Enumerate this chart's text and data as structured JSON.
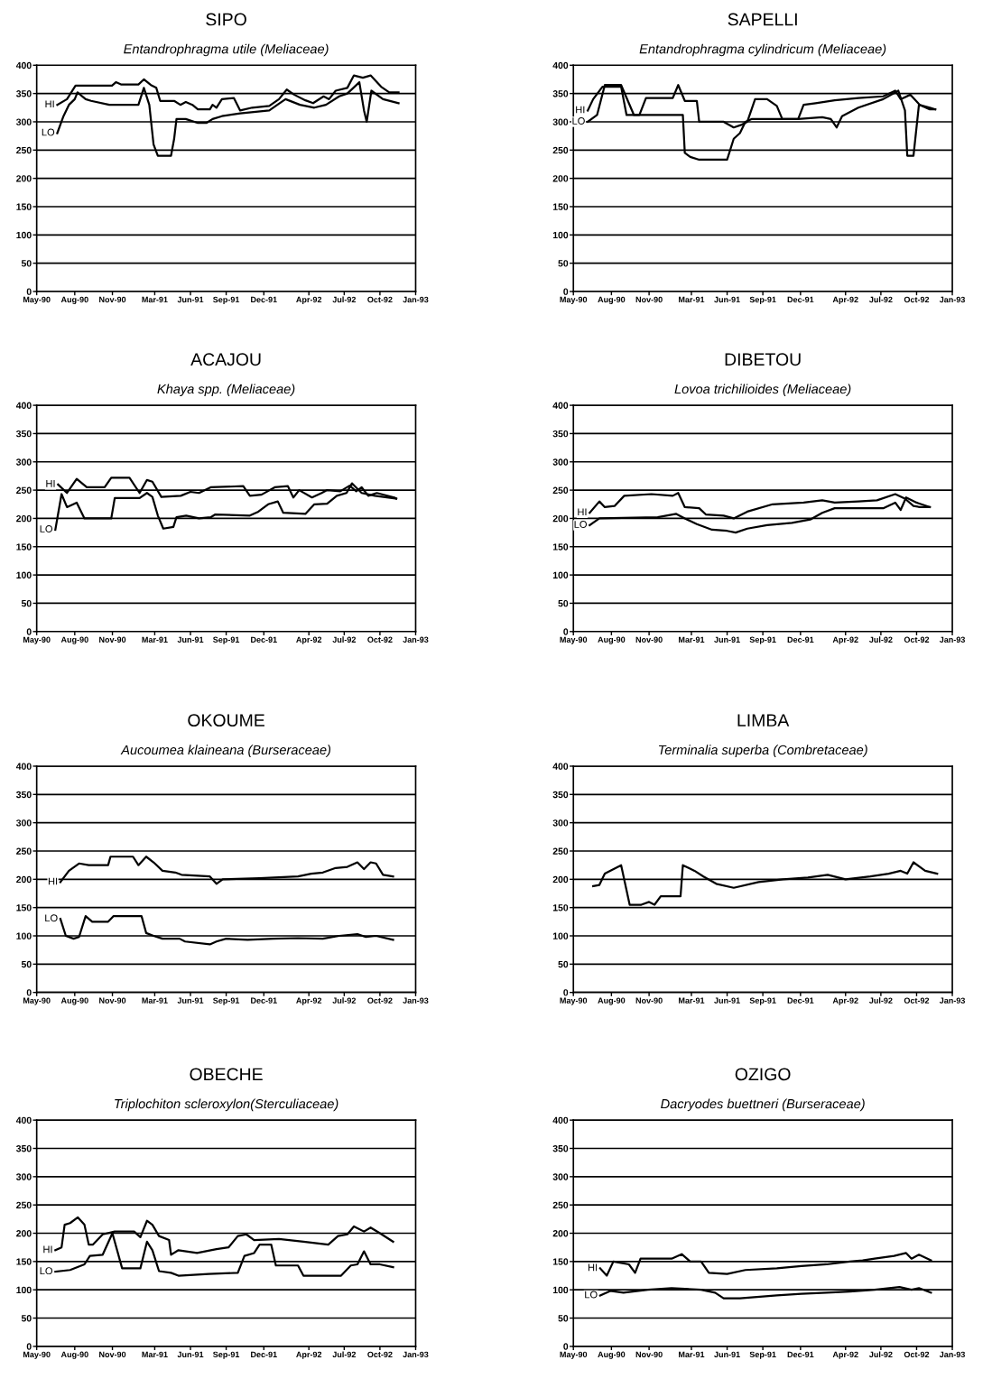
{
  "chart_data": [
    {
      "type": "line",
      "title": "SIPO",
      "subtitle": "Entandrophragma utile (Meliaceae)",
      "grid": "y",
      "xlim": [
        "1990-05-01",
        "1993-01-01"
      ],
      "ylim": [
        0,
        400
      ],
      "yticks": [
        0,
        50,
        100,
        150,
        200,
        250,
        300,
        350,
        400
      ],
      "xticks": [
        {
          "value": "1990-05-01",
          "label": "May-90"
        },
        {
          "value": "1990-08-07",
          "label": "Aug-90"
        },
        {
          "value": "1990-11-12",
          "label": "Nov-90"
        },
        {
          "value": "1991-03-01",
          "label": "Mar-91"
        },
        {
          "value": "1991-06-01",
          "label": "Jun-91"
        },
        {
          "value": "1991-09-01",
          "label": "Sep-91"
        },
        {
          "value": "1991-12-07",
          "label": "Dec-91"
        },
        {
          "value": "1992-04-01",
          "label": "Apr-92"
        },
        {
          "value": "1992-07-01",
          "label": "Jul-92"
        },
        {
          "value": "1992-10-01",
          "label": "Oct-92"
        },
        {
          "value": "1993-01-01",
          "label": "Jan-93"
        }
      ],
      "series": [
        {
          "name": "HI",
          "color": "#000000",
          "x": [
            "1990-06-23",
            "1990-07-18",
            "1990-08-09",
            "1990-11-11",
            "1990-11-21",
            "1990-12-04",
            "1991-01-18",
            "1991-02-01",
            "1991-02-19",
            "1991-03-05",
            "1991-03-15",
            "1991-04-20",
            "1991-05-06",
            "1991-05-20",
            "1991-06-06",
            "1991-06-20",
            "1991-07-21",
            "1991-07-28",
            "1991-08-07",
            "1991-08-21",
            "1991-09-21",
            "1991-10-07",
            "1991-11-07",
            "1991-12-21",
            "1992-01-15",
            "1992-02-04",
            "1992-02-23",
            "1992-03-23",
            "1992-04-12",
            "1992-05-09",
            "1992-05-23",
            "1992-06-09",
            "1992-07-09",
            "1992-07-26",
            "1992-08-18",
            "1992-09-07",
            "1992-10-04",
            "1992-10-25",
            "1992-11-18"
          ],
          "values": [
            330,
            340,
            364,
            364,
            370,
            366,
            366,
            375,
            365,
            360,
            337,
            337,
            330,
            335,
            330,
            322,
            322,
            330,
            325,
            340,
            342,
            320,
            325,
            328,
            340,
            357,
            348,
            338,
            333,
            345,
            340,
            355,
            360,
            382,
            378,
            382,
            362,
            352,
            352
          ]
        },
        {
          "name": "LO",
          "color": "#000000",
          "x": [
            "1990-06-23",
            "1990-07-09",
            "1990-07-23",
            "1990-08-07",
            "1990-08-14",
            "1990-09-04",
            "1990-09-18",
            "1990-11-04",
            "1991-01-18",
            "1991-02-01",
            "1991-02-15",
            "1991-02-26",
            "1991-03-09",
            "1991-04-12",
            "1991-04-20",
            "1991-04-26",
            "1991-05-20",
            "1991-06-20",
            "1991-07-12",
            "1991-07-28",
            "1991-08-21",
            "1991-10-07",
            "1991-12-21",
            "1992-01-15",
            "1992-02-01",
            "1992-03-09",
            "1992-04-15",
            "1992-05-15",
            "1992-06-18",
            "1992-07-09",
            "1992-08-09",
            "1992-08-21",
            "1992-08-28",
            "1992-09-09",
            "1992-10-09",
            "1992-11-18"
          ],
          "values": [
            280,
            310,
            330,
            340,
            352,
            340,
            337,
            330,
            330,
            360,
            330,
            260,
            240,
            240,
            270,
            305,
            305,
            298,
            298,
            305,
            310,
            315,
            320,
            332,
            340,
            330,
            325,
            330,
            345,
            350,
            370,
            320,
            300,
            355,
            340,
            333
          ]
        }
      ]
    },
    {
      "type": "line",
      "title": "SAPELLI",
      "subtitle": "Entandrophragma cylindricum (Meliaceae)",
      "grid": "y",
      "xlim": [
        "1990-05-01",
        "1993-01-01"
      ],
      "ylim": [
        0,
        400
      ],
      "yticks": [
        0,
        50,
        100,
        150,
        200,
        250,
        300,
        350,
        400
      ],
      "xticks": [
        {
          "value": "1990-05-01",
          "label": "May-90"
        },
        {
          "value": "1990-08-07",
          "label": "Aug-90"
        },
        {
          "value": "1990-11-12",
          "label": "Nov-90"
        },
        {
          "value": "1991-03-01",
          "label": "Mar-91"
        },
        {
          "value": "1991-06-01",
          "label": "Jun-91"
        },
        {
          "value": "1991-09-01",
          "label": "Sep-91"
        },
        {
          "value": "1991-12-07",
          "label": "Dec-91"
        },
        {
          "value": "1992-04-01",
          "label": "Apr-92"
        },
        {
          "value": "1992-07-01",
          "label": "Jul-92"
        },
        {
          "value": "1992-10-01",
          "label": "Oct-92"
        },
        {
          "value": "1993-01-01",
          "label": "Jan-93"
        }
      ],
      "series": [
        {
          "name": "HI",
          "color": "#000000",
          "x": [
            "1990-06-07",
            "1990-06-21",
            "1990-07-15",
            "1990-09-01",
            "1990-09-15",
            "1990-10-18",
            "1990-11-04",
            "1991-01-12",
            "1991-01-26",
            "1991-02-12",
            "1991-03-15",
            "1991-03-21",
            "1991-05-23",
            "1991-06-18",
            "1991-07-09",
            "1991-07-23",
            "1991-08-12",
            "1991-09-12",
            "1991-10-07",
            "1991-10-21",
            "1991-12-01",
            "1991-12-15",
            "1992-01-15",
            "1992-03-04",
            "1992-05-04",
            "1992-07-07",
            "1992-08-07",
            "1992-08-21",
            "1992-09-15",
            "1992-10-09",
            "1992-11-04",
            "1992-11-18"
          ],
          "values": [
            320,
            340,
            362,
            362,
            312,
            312,
            342,
            342,
            365,
            337,
            337,
            300,
            300,
            290,
            295,
            300,
            340,
            340,
            328,
            305,
            305,
            330,
            333,
            338,
            342,
            345,
            355,
            340,
            348,
            330,
            322,
            322
          ]
        },
        {
          "name": "LO",
          "color": "#000000",
          "x": [
            "1990-06-07",
            "1990-07-01",
            "1990-07-21",
            "1990-09-01",
            "1990-10-04",
            "1991-02-07",
            "1991-02-12",
            "1991-02-26",
            "1991-03-21",
            "1991-06-01",
            "1991-06-18",
            "1991-07-04",
            "1991-07-18",
            "1991-08-04",
            "1991-12-01",
            "1992-02-01",
            "1992-02-23",
            "1992-03-09",
            "1992-03-23",
            "1992-05-04",
            "1992-07-07",
            "1992-08-15",
            "1992-09-01",
            "1992-09-07",
            "1992-09-23",
            "1992-10-07",
            "1992-11-04",
            "1992-11-18"
          ],
          "values": [
            300,
            312,
            365,
            365,
            312,
            312,
            245,
            238,
            233,
            233,
            270,
            280,
            300,
            305,
            305,
            308,
            305,
            290,
            310,
            325,
            340,
            355,
            320,
            240,
            240,
            330,
            325,
            322
          ]
        }
      ]
    },
    {
      "type": "line",
      "title": "ACAJOU",
      "subtitle": "Khaya spp. (Meliaceae)",
      "grid": "y",
      "xlim": [
        "1990-05-01",
        "1993-01-01"
      ],
      "ylim": [
        0,
        400
      ],
      "yticks": [
        0,
        50,
        100,
        150,
        200,
        250,
        300,
        350,
        400
      ],
      "xticks": [
        {
          "value": "1990-05-01",
          "label": "May-90"
        },
        {
          "value": "1990-08-07",
          "label": "Aug-90"
        },
        {
          "value": "1990-11-12",
          "label": "Nov-90"
        },
        {
          "value": "1991-03-01",
          "label": "Mar-91"
        },
        {
          "value": "1991-06-01",
          "label": "Jun-91"
        },
        {
          "value": "1991-09-01",
          "label": "Sep-91"
        },
        {
          "value": "1991-12-07",
          "label": "Dec-91"
        },
        {
          "value": "1992-04-01",
          "label": "Apr-92"
        },
        {
          "value": "1992-07-01",
          "label": "Jul-92"
        },
        {
          "value": "1992-10-01",
          "label": "Oct-92"
        },
        {
          "value": "1993-01-01",
          "label": "Jan-93"
        }
      ],
      "series": [
        {
          "name": "HI",
          "color": "#000000",
          "x": [
            "1990-06-25",
            "1990-07-18",
            "1990-08-12",
            "1990-09-07",
            "1990-10-23",
            "1990-11-09",
            "1990-12-26",
            "1991-01-21",
            "1991-02-09",
            "1991-02-23",
            "1991-03-18",
            "1991-05-07",
            "1991-06-01",
            "1991-06-23",
            "1991-07-23",
            "1991-10-15",
            "1991-11-01",
            "1991-12-01",
            "1992-01-04",
            "1992-02-07",
            "1992-02-21",
            "1992-03-07",
            "1992-04-09",
            "1992-05-04",
            "1992-05-18",
            "1992-06-21",
            "1992-07-15",
            "1992-08-01",
            "1992-08-15",
            "1992-09-01",
            "1992-09-23",
            "1992-11-07",
            "1992-11-12"
          ],
          "values": [
            260,
            245,
            270,
            255,
            255,
            272,
            272,
            245,
            268,
            265,
            238,
            240,
            247,
            245,
            255,
            257,
            240,
            242,
            255,
            257,
            237,
            250,
            237,
            245,
            250,
            248,
            258,
            248,
            255,
            240,
            245,
            237,
            235
          ]
        },
        {
          "name": "LO",
          "color": "#000000",
          "x": [
            "1990-06-18",
            "1990-07-04",
            "1990-07-18",
            "1990-08-12",
            "1990-09-01",
            "1990-11-09",
            "1990-11-18",
            "1991-01-21",
            "1991-02-09",
            "1991-02-23",
            "1991-03-09",
            "1991-03-23",
            "1991-04-18",
            "1991-04-26",
            "1991-05-21",
            "1991-06-23",
            "1991-07-23",
            "1991-08-04",
            "1991-11-01",
            "1991-11-23",
            "1991-12-18",
            "1992-01-12",
            "1992-01-26",
            "1992-03-23",
            "1992-04-15",
            "1992-05-18",
            "1992-06-12",
            "1992-07-07",
            "1992-07-21",
            "1992-08-15",
            "1992-09-18",
            "1992-11-12"
          ],
          "values": [
            180,
            243,
            220,
            228,
            200,
            200,
            236,
            236,
            245,
            238,
            205,
            182,
            185,
            202,
            205,
            200,
            202,
            207,
            205,
            212,
            225,
            230,
            210,
            208,
            225,
            226,
            240,
            245,
            262,
            245,
            240,
            235
          ]
        }
      ]
    },
    {
      "type": "line",
      "title": "DIBETOU",
      "subtitle": "Lovoa trichilioides (Meliaceae)",
      "grid": "y",
      "xlim": [
        "1990-05-01",
        "1993-01-01"
      ],
      "ylim": [
        0,
        400
      ],
      "yticks": [
        0,
        50,
        100,
        150,
        200,
        250,
        300,
        350,
        400
      ],
      "xticks": [
        {
          "value": "1990-05-01",
          "label": "May-90"
        },
        {
          "value": "1990-08-07",
          "label": "Aug-90"
        },
        {
          "value": "1990-11-12",
          "label": "Nov-90"
        },
        {
          "value": "1991-03-01",
          "label": "Mar-91"
        },
        {
          "value": "1991-06-01",
          "label": "Jun-91"
        },
        {
          "value": "1991-09-01",
          "label": "Sep-91"
        },
        {
          "value": "1991-12-07",
          "label": "Dec-91"
        },
        {
          "value": "1992-04-01",
          "label": "Apr-92"
        },
        {
          "value": "1992-07-01",
          "label": "Jul-92"
        },
        {
          "value": "1992-10-01",
          "label": "Oct-92"
        },
        {
          "value": "1993-01-01",
          "label": "Jan-93"
        }
      ],
      "series": [
        {
          "name": "HI",
          "color": "#000000",
          "x": [
            "1990-06-12",
            "1990-07-07",
            "1990-07-21",
            "1990-08-15",
            "1990-09-09",
            "1990-11-18",
            "1991-01-12",
            "1991-01-26",
            "1991-02-12",
            "1991-03-21",
            "1991-04-07",
            "1991-05-23",
            "1991-06-18",
            "1991-07-23",
            "1991-09-26",
            "1991-12-15",
            "1992-02-01",
            "1992-03-04",
            "1992-05-04",
            "1992-06-21",
            "1992-08-07",
            "1992-09-01",
            "1992-09-23",
            "1992-10-09",
            "1992-11-04"
          ],
          "values": [
            210,
            230,
            220,
            222,
            240,
            243,
            240,
            245,
            220,
            218,
            207,
            205,
            200,
            212,
            225,
            228,
            232,
            228,
            230,
            232,
            243,
            235,
            222,
            220,
            220
          ]
        },
        {
          "name": "LO",
          "color": "#000000",
          "x": [
            "1990-06-12",
            "1990-07-07",
            "1990-12-04",
            "1991-01-21",
            "1991-02-12",
            "1991-03-15",
            "1991-04-23",
            "1991-06-01",
            "1991-06-23",
            "1991-07-23",
            "1991-09-12",
            "1991-11-15",
            "1992-01-01",
            "1992-02-01",
            "1992-03-04",
            "1992-05-04",
            "1992-07-07",
            "1992-08-07",
            "1992-08-21",
            "1992-09-04",
            "1992-10-01",
            "1992-11-04"
          ],
          "values": [
            188,
            200,
            202,
            208,
            200,
            190,
            180,
            178,
            175,
            182,
            188,
            192,
            198,
            210,
            218,
            218,
            218,
            228,
            215,
            237,
            228,
            220
          ]
        }
      ]
    },
    {
      "type": "line",
      "title": "OKOUME",
      "subtitle": "Aucoumea klaineana (Burseraceae)",
      "grid": "y",
      "xlim": [
        "1990-05-01",
        "1993-01-01"
      ],
      "ylim": [
        0,
        400
      ],
      "yticks": [
        0,
        50,
        100,
        150,
        200,
        250,
        300,
        350,
        400
      ],
      "xticks": [
        {
          "value": "1990-05-01",
          "label": "May-90"
        },
        {
          "value": "1990-08-07",
          "label": "Aug-90"
        },
        {
          "value": "1990-11-12",
          "label": "Nov-90"
        },
        {
          "value": "1991-03-01",
          "label": "Mar-91"
        },
        {
          "value": "1991-06-01",
          "label": "Jun-91"
        },
        {
          "value": "1991-09-01",
          "label": "Sep-91"
        },
        {
          "value": "1991-12-07",
          "label": "Dec-91"
        },
        {
          "value": "1992-04-01",
          "label": "Apr-92"
        },
        {
          "value": "1992-07-01",
          "label": "Jul-92"
        },
        {
          "value": "1992-10-01",
          "label": "Oct-92"
        },
        {
          "value": "1993-01-01",
          "label": "Jan-93"
        }
      ],
      "series": [
        {
          "name": "HI",
          "color": "#000000",
          "x": [
            "1990-07-01",
            "1990-07-23",
            "1990-08-18",
            "1990-09-12",
            "1990-11-01",
            "1990-11-07",
            "1991-01-04",
            "1991-01-18",
            "1991-02-07",
            "1991-02-26",
            "1991-03-21",
            "1991-04-23",
            "1991-05-09",
            "1991-07-21",
            "1991-08-07",
            "1991-08-23",
            "1991-11-26",
            "1992-03-04",
            "1992-04-07",
            "1992-05-07",
            "1992-06-09",
            "1992-07-09",
            "1992-08-04",
            "1992-08-21",
            "1992-09-07",
            "1992-09-21",
            "1992-10-09",
            "1992-11-04"
          ],
          "values": [
            195,
            215,
            228,
            225,
            225,
            240,
            240,
            225,
            240,
            230,
            215,
            212,
            208,
            205,
            192,
            200,
            202,
            205,
            210,
            212,
            220,
            222,
            230,
            218,
            230,
            228,
            208,
            205
          ]
        },
        {
          "name": "LO",
          "color": "#000000",
          "x": [
            "1990-07-01",
            "1990-07-15",
            "1990-08-04",
            "1990-08-18",
            "1990-09-04",
            "1990-09-21",
            "1990-11-01",
            "1990-11-15",
            "1991-01-26",
            "1991-02-07",
            "1991-02-26",
            "1991-03-21",
            "1991-05-04",
            "1991-05-18",
            "1991-07-21",
            "1991-08-07",
            "1991-09-01",
            "1991-10-26",
            "1992-01-01",
            "1992-03-04",
            "1992-05-07",
            "1992-06-18",
            "1992-08-04",
            "1992-08-26",
            "1992-09-21",
            "1992-11-04"
          ],
          "values": [
            130,
            100,
            95,
            98,
            135,
            125,
            125,
            135,
            135,
            105,
            100,
            95,
            95,
            90,
            85,
            90,
            95,
            93,
            95,
            96,
            95,
            100,
            103,
            98,
            100,
            93
          ]
        }
      ]
    },
    {
      "type": "line",
      "title": "LIMBA",
      "subtitle": "Terminalia superba (Combretaceae)",
      "grid": "y",
      "xlim": [
        "1990-05-01",
        "1993-01-01"
      ],
      "ylim": [
        0,
        400
      ],
      "yticks": [
        0,
        50,
        100,
        150,
        200,
        250,
        300,
        350,
        400
      ],
      "xticks": [
        {
          "value": "1990-05-01",
          "label": "May-90"
        },
        {
          "value": "1990-08-07",
          "label": "Aug-90"
        },
        {
          "value": "1990-11-12",
          "label": "Nov-90"
        },
        {
          "value": "1991-03-01",
          "label": "Mar-91"
        },
        {
          "value": "1991-06-01",
          "label": "Jun-91"
        },
        {
          "value": "1991-09-01",
          "label": "Sep-91"
        },
        {
          "value": "1991-12-07",
          "label": "Dec-91"
        },
        {
          "value": "1992-04-01",
          "label": "Apr-92"
        },
        {
          "value": "1992-07-01",
          "label": "Jul-92"
        },
        {
          "value": "1992-10-01",
          "label": "Oct-92"
        },
        {
          "value": "1993-01-01",
          "label": "Jan-93"
        }
      ],
      "series": [
        {
          "color": "#000000",
          "x": [
            "1990-06-21",
            "1990-07-07",
            "1990-07-21",
            "1990-09-01",
            "1990-09-23",
            "1990-10-23",
            "1990-11-12",
            "1990-11-26",
            "1990-12-12",
            "1991-02-01",
            "1991-02-07",
            "1991-03-09",
            "1991-04-01",
            "1991-05-04",
            "1991-06-18",
            "1991-08-21",
            "1991-10-23",
            "1991-12-26",
            "1992-02-15",
            "1992-04-01",
            "1992-06-04",
            "1992-07-21",
            "1992-08-21",
            "1992-09-07",
            "1992-09-23",
            "1992-10-23",
            "1992-11-23"
          ],
          "values": [
            188,
            190,
            210,
            225,
            155,
            155,
            160,
            155,
            170,
            170,
            225,
            215,
            205,
            192,
            185,
            195,
            200,
            203,
            208,
            200,
            205,
            210,
            215,
            210,
            230,
            215,
            210
          ]
        }
      ]
    },
    {
      "type": "line",
      "title": "OBECHE",
      "subtitle": "Triplochiton scleroxylon(Sterculiaceae)",
      "grid": "y",
      "xlim": [
        "1990-05-01",
        "1993-01-01"
      ],
      "ylim": [
        0,
        400
      ],
      "yticks": [
        0,
        50,
        100,
        150,
        200,
        250,
        300,
        350,
        400
      ],
      "xticks": [
        {
          "value": "1990-05-01",
          "label": "May-90"
        },
        {
          "value": "1990-08-07",
          "label": "Aug-90"
        },
        {
          "value": "1990-11-12",
          "label": "Nov-90"
        },
        {
          "value": "1991-03-01",
          "label": "Mar-91"
        },
        {
          "value": "1991-06-01",
          "label": "Jun-91"
        },
        {
          "value": "1991-09-01",
          "label": "Sep-91"
        },
        {
          "value": "1991-12-07",
          "label": "Dec-91"
        },
        {
          "value": "1992-04-01",
          "label": "Apr-92"
        },
        {
          "value": "1992-07-01",
          "label": "Jul-92"
        },
        {
          "value": "1992-10-01",
          "label": "Oct-92"
        },
        {
          "value": "1993-01-01",
          "label": "Jan-93"
        }
      ],
      "series": [
        {
          "name": "HI",
          "color": "#000000",
          "x": [
            "1990-06-18",
            "1990-07-04",
            "1990-07-12",
            "1990-07-26",
            "1990-08-15",
            "1990-09-01",
            "1990-09-12",
            "1990-09-23",
            "1990-10-18",
            "1990-11-18",
            "1991-01-07",
            "1991-01-23",
            "1991-02-09",
            "1991-02-23",
            "1991-03-12",
            "1991-04-07",
            "1991-04-12",
            "1991-05-01",
            "1991-06-18",
            "1991-08-07",
            "1991-09-07",
            "1991-10-01",
            "1991-10-23",
            "1991-11-12",
            "1992-01-15",
            "1992-03-18",
            "1992-05-21",
            "1992-06-15",
            "1992-07-09",
            "1992-07-26",
            "1992-08-21",
            "1992-09-07",
            "1992-10-01",
            "1992-11-04"
          ],
          "values": [
            170,
            175,
            215,
            218,
            228,
            215,
            180,
            180,
            198,
            203,
            203,
            193,
            222,
            215,
            195,
            188,
            162,
            170,
            165,
            172,
            175,
            195,
            198,
            188,
            190,
            185,
            180,
            195,
            198,
            212,
            203,
            210,
            200,
            185
          ]
        },
        {
          "name": "LO",
          "color": "#000000",
          "x": [
            "1990-06-18",
            "1990-07-26",
            "1990-09-01",
            "1990-09-15",
            "1990-10-18",
            "1990-11-12",
            "1990-12-07",
            "1991-01-23",
            "1991-02-09",
            "1991-02-23",
            "1991-03-12",
            "1991-04-12",
            "1991-05-01",
            "1991-07-18",
            "1991-10-01",
            "1991-10-18",
            "1991-11-12",
            "1991-11-26",
            "1991-12-26",
            "1992-01-07",
            "1992-03-04",
            "1992-03-18",
            "1992-06-23",
            "1992-07-18",
            "1992-08-04",
            "1992-08-21",
            "1992-09-07",
            "1992-10-01",
            "1992-11-04"
          ],
          "values": [
            132,
            135,
            145,
            160,
            162,
            200,
            138,
            138,
            185,
            170,
            133,
            130,
            125,
            128,
            130,
            160,
            165,
            180,
            180,
            143,
            143,
            125,
            125,
            143,
            145,
            168,
            145,
            145,
            140
          ]
        }
      ]
    },
    {
      "type": "line",
      "title": "OZIGO",
      "subtitle": "Dacryodes buettneri (Burseraceae)",
      "grid": "y",
      "xlim": [
        "1990-05-01",
        "1993-01-01"
      ],
      "ylim": [
        0,
        400
      ],
      "yticks": [
        0,
        50,
        100,
        150,
        200,
        250,
        300,
        350,
        400
      ],
      "xticks": [
        {
          "value": "1990-05-01",
          "label": "May-90"
        },
        {
          "value": "1990-08-07",
          "label": "Aug-90"
        },
        {
          "value": "1990-11-12",
          "label": "Nov-90"
        },
        {
          "value": "1991-03-01",
          "label": "Mar-91"
        },
        {
          "value": "1991-06-01",
          "label": "Jun-91"
        },
        {
          "value": "1991-09-01",
          "label": "Sep-91"
        },
        {
          "value": "1991-12-07",
          "label": "Dec-91"
        },
        {
          "value": "1992-04-01",
          "label": "Apr-92"
        },
        {
          "value": "1992-07-01",
          "label": "Jul-92"
        },
        {
          "value": "1992-10-01",
          "label": "Oct-92"
        },
        {
          "value": "1993-01-01",
          "label": "Jan-93"
        }
      ],
      "series": [
        {
          "name": "HI",
          "color": "#000000",
          "x": [
            "1990-07-09",
            "1990-07-26",
            "1990-08-12",
            "1990-09-21",
            "1990-10-07",
            "1990-10-21",
            "1991-01-09",
            "1991-02-04",
            "1991-02-26",
            "1991-03-26",
            "1991-04-15",
            "1991-06-01",
            "1991-07-18",
            "1991-10-07",
            "1991-12-09",
            "1992-02-12",
            "1992-04-12",
            "1992-05-15",
            "1992-06-15",
            "1992-08-04",
            "1992-09-04",
            "1992-09-18",
            "1992-10-07",
            "1992-11-07"
          ],
          "values": [
            138,
            125,
            150,
            145,
            130,
            155,
            155,
            163,
            150,
            150,
            130,
            128,
            135,
            138,
            142,
            145,
            150,
            152,
            155,
            160,
            165,
            155,
            162,
            152
          ]
        },
        {
          "name": "LO",
          "color": "#000000",
          "x": [
            "1990-07-09",
            "1990-08-04",
            "1990-09-07",
            "1990-11-09",
            "1991-01-09",
            "1991-03-26",
            "1991-05-01",
            "1991-05-23",
            "1991-07-04",
            "1991-10-07",
            "1991-12-09",
            "1992-02-12",
            "1992-04-12",
            "1992-06-15",
            "1992-08-18",
            "1992-09-18",
            "1992-10-07",
            "1992-11-07"
          ],
          "values": [
            90,
            98,
            95,
            100,
            103,
            100,
            95,
            85,
            85,
            90,
            93,
            95,
            97,
            100,
            105,
            100,
            103,
            95
          ]
        }
      ]
    }
  ]
}
